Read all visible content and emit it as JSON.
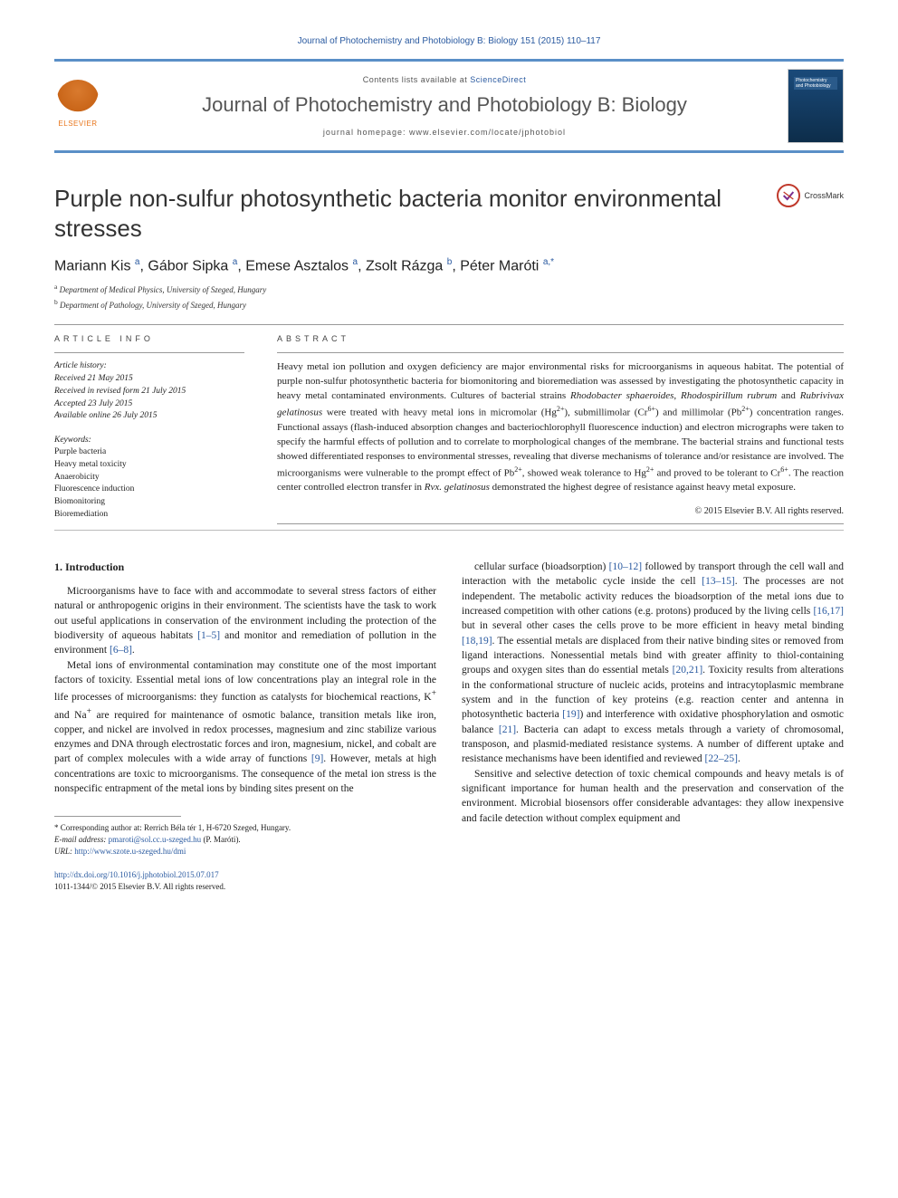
{
  "header": {
    "citation": "Journal of Photochemistry and Photobiology B: Biology 151 (2015) 110–117",
    "contents_prefix": "Contents lists available at ",
    "contents_link": "ScienceDirect",
    "journal_name": "Journal of Photochemistry and Photobiology B: Biology",
    "homepage_prefix": "journal homepage: ",
    "homepage_url": "www.elsevier.com/locate/jphotobiol",
    "elsevier_label": "ELSEVIER",
    "cover_label": "Photochemistry and Photobiology",
    "crossmark_label": "CrossMark"
  },
  "article": {
    "title": "Purple non-sulfur photosynthetic bacteria monitor environmental stresses",
    "authors_html": "Mariann Kis <sup>a</sup>, Gábor Sipka <sup>a</sup>, Emese Asztalos <sup>a</sup>, Zsolt Rázga <sup>b</sup>, Péter Maróti <sup>a,*</sup>",
    "affiliations": [
      {
        "sup": "a",
        "text": "Department of Medical Physics, University of Szeged, Hungary"
      },
      {
        "sup": "b",
        "text": "Department of Pathology, University of Szeged, Hungary"
      }
    ]
  },
  "info": {
    "head": "ARTICLE INFO",
    "history_label": "Article history:",
    "received": "Received 21 May 2015",
    "revised": "Received in revised form 21 July 2015",
    "accepted": "Accepted 23 July 2015",
    "online": "Available online 26 July 2015",
    "keywords_label": "Keywords:",
    "keywords": [
      "Purple bacteria",
      "Heavy metal toxicity",
      "Anaerobicity",
      "Fluorescence induction",
      "Biomonitoring",
      "Bioremediation"
    ]
  },
  "abstract": {
    "head": "ABSTRACT",
    "text": "Heavy metal ion pollution and oxygen deficiency are major environmental risks for microorganisms in aqueous habitat. The potential of purple non-sulfur photosynthetic bacteria for biomonitoring and bioremediation was assessed by investigating the photosynthetic capacity in heavy metal contaminated environments. Cultures of bacterial strains Rhodobacter sphaeroides, Rhodospirillum rubrum and Rubrivivax gelatinosus were treated with heavy metal ions in micromolar (Hg2+), submillimolar (Cr6+) and millimolar (Pb2+) concentration ranges. Functional assays (flash-induced absorption changes and bacteriochlorophyll fluorescence induction) and electron micrographs were taken to specify the harmful effects of pollution and to correlate to morphological changes of the membrane. The bacterial strains and functional tests showed differentiated responses to environmental stresses, revealing that diverse mechanisms of tolerance and/or resistance are involved. The microorganisms were vulnerable to the prompt effect of Pb2+, showed weak tolerance to Hg2+ and proved to be tolerant to Cr6+. The reaction center controlled electron transfer in Rvx. gelatinosus demonstrated the highest degree of resistance against heavy metal exposure.",
    "copyright": "© 2015 Elsevier B.V. All rights reserved."
  },
  "body": {
    "section_num": "1.",
    "section_title": "Introduction",
    "col1": [
      "Microorganisms have to face with and accommodate to several stress factors of either natural or anthropogenic origins in their environment. The scientists have the task to work out useful applications in conservation of the environment including the protection of the biodiversity of aqueous habitats [1–5] and monitor and remediation of pollution in the environment [6–8].",
      "Metal ions of environmental contamination may constitute one of the most important factors of toxicity. Essential metal ions of low concentrations play an integral role in the life processes of microorganisms: they function as catalysts for biochemical reactions, K+ and Na+ are required for maintenance of osmotic balance, transition metals like iron, copper, and nickel are involved in redox processes, magnesium and zinc stabilize various enzymes and DNA through electrostatic forces and iron, magnesium, nickel, and cobalt are part of complex molecules with a wide array of functions [9]. However, metals at high concentrations are toxic to microorganisms. The consequence of the metal ion stress is the nonspecific entrapment of the metal ions by binding sites present on the"
    ],
    "col2": [
      "cellular surface (bioadsorption) [10–12] followed by transport through the cell wall and interaction with the metabolic cycle inside the cell [13–15]. The processes are not independent. The metabolic activity reduces the bioadsorption of the metal ions due to increased competition with other cations (e.g. protons) produced by the living cells [16,17] but in several other cases the cells prove to be more efficient in heavy metal binding [18,19]. The essential metals are displaced from their native binding sites or removed from ligand interactions. Nonessential metals bind with greater affinity to thiol-containing groups and oxygen sites than do essential metals [20,21]. Toxicity results from alterations in the conformational structure of nucleic acids, proteins and intracytoplasmic membrane system and in the function of key proteins (e.g. reaction center and antenna in photosynthetic bacteria [19]) and interference with oxidative phosphorylation and osmotic balance [21]. Bacteria can adapt to excess metals through a variety of chromosomal, transposon, and plasmid-mediated resistance systems. A number of different uptake and resistance mechanisms have been identified and reviewed [22–25].",
      "Sensitive and selective detection of toxic chemical compounds and heavy metals is of significant importance for human health and the preservation and conservation of the environment. Microbial biosensors offer considerable advantages: they allow inexpensive and facile detection without complex equipment and"
    ]
  },
  "footnote": {
    "corr_prefix": "* Corresponding author at: ",
    "corr_addr": "Rerrich Béla tér 1, H-6720 Szeged, Hungary.",
    "email_label": "E-mail address: ",
    "email": "pmaroti@sol.cc.u-szeged.hu",
    "email_owner": " (P. Maróti).",
    "url_label": "URL: ",
    "url": "http://www.szote.u-szeged.hu/dmi"
  },
  "doi": {
    "link": "http://dx.doi.org/10.1016/j.jphotobiol.2015.07.017",
    "issn_line": "1011-1344/© 2015 Elsevier B.V. All rights reserved."
  },
  "refs": {
    "r1": "[1–5]",
    "r2": "[6–8]",
    "r3": "[9]",
    "r4": "[10–12]",
    "r5": "[13–15]",
    "r6": "[16,17]",
    "r7": "[18,19]",
    "r8": "[20,21]",
    "r9": "[19]",
    "r10": "[21]",
    "r11": "[22–25]"
  },
  "colors": {
    "link": "#2a5aa0",
    "banner_border": "#5a8fc7",
    "elsevier_orange": "#e8751a",
    "text": "#1a1a1a"
  }
}
